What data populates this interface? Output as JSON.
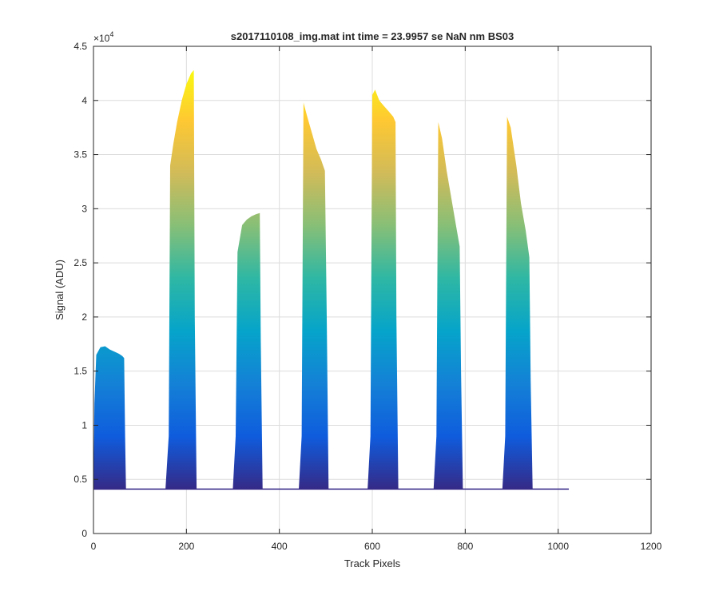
{
  "chart_data": {
    "type": "area",
    "title": "s2017110108_img.mat int time = 23.9957 se  NaN nm BS03",
    "xlabel": "Track Pixels",
    "ylabel": "Signal (ADU)",
    "xlim": [
      0,
      1200
    ],
    "ylim": [
      0,
      45000
    ],
    "exponent_label": "×10",
    "exponent_power": "4",
    "grid": true,
    "x_ticks": [
      0,
      200,
      400,
      600,
      800,
      1000,
      1200
    ],
    "x_tick_labels": [
      "0",
      "200",
      "400",
      "600",
      "800",
      "1000",
      "1200"
    ],
    "y_ticks": [
      0,
      5000,
      10000,
      15000,
      20000,
      25000,
      30000,
      35000,
      40000,
      45000
    ],
    "y_tick_labels": [
      "0",
      "0.5",
      "1",
      "1.5",
      "2",
      "2.5",
      "3",
      "3.5",
      "4",
      "4.5"
    ],
    "baseline": 4100,
    "x_max_data": 1023,
    "colormap": [
      "#352a87",
      "#0f5cdd",
      "#1481d6",
      "#06a4ca",
      "#2eb7a4",
      "#87bf77",
      "#d1bb59",
      "#fec832",
      "#f9fb0e"
    ],
    "peaks": [
      {
        "x": [
          0,
          2,
          6,
          15,
          25,
          35,
          45,
          55,
          62,
          66,
          68,
          70
        ],
        "y": [
          4100,
          12000,
          16500,
          17200,
          17300,
          17000,
          16800,
          16600,
          16400,
          16200,
          9000,
          4100
        ]
      },
      {
        "x": [
          155,
          162,
          165,
          172,
          180,
          190,
          200,
          210,
          216,
          218,
          222
        ],
        "y": [
          4200,
          9000,
          34000,
          36000,
          38000,
          40000,
          41500,
          42500,
          42800,
          20000,
          4100
        ]
      },
      {
        "x": [
          300,
          306,
          310,
          320,
          330,
          340,
          350,
          358,
          360,
          364
        ],
        "y": [
          4200,
          9000,
          26000,
          28500,
          29000,
          29300,
          29500,
          29600,
          18000,
          4100
        ]
      },
      {
        "x": [
          442,
          448,
          452,
          460,
          470,
          480,
          490,
          498,
          502,
          506
        ],
        "y": [
          4200,
          9000,
          39800,
          38500,
          37000,
          35500,
          34500,
          33500,
          20000,
          4100
        ]
      },
      {
        "x": [
          590,
          596,
          600,
          606,
          615,
          625,
          635,
          645,
          650,
          652,
          656
        ],
        "y": [
          4200,
          9000,
          40500,
          41000,
          40000,
          39500,
          39000,
          38500,
          38000,
          20000,
          4100
        ]
      },
      {
        "x": [
          732,
          738,
          742,
          750,
          760,
          770,
          780,
          788,
          791,
          795
        ],
        "y": [
          4200,
          9000,
          38000,
          36500,
          33500,
          31000,
          28500,
          26500,
          15000,
          4100
        ]
      },
      {
        "x": [
          880,
          886,
          890,
          898,
          910,
          920,
          930,
          938,
          941,
          945
        ],
        "y": [
          4200,
          9000,
          38500,
          37500,
          34000,
          30500,
          28000,
          25500,
          14000,
          4100
        ]
      }
    ]
  }
}
